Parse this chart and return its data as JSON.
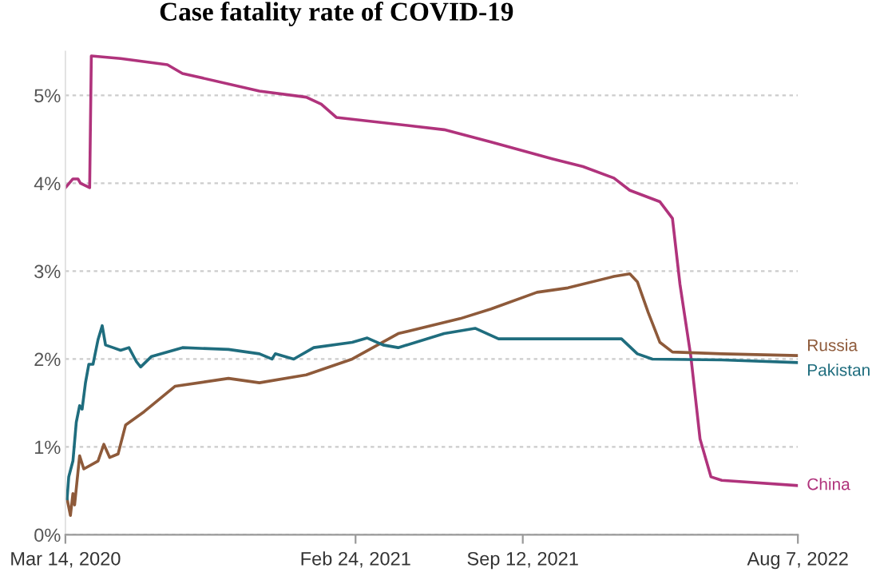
{
  "chart_data": {
    "type": "line",
    "title": "Case fatality rate of COVID-19",
    "xlim": [
      "2020-03-14",
      "2022-08-07"
    ],
    "xticks": [
      {
        "value": "2020-03-14",
        "label": "Mar 14, 2020"
      },
      {
        "value": "2021-02-24",
        "label": "Feb 24, 2021"
      },
      {
        "value": "2021-09-12",
        "label": "Sep 12, 2021"
      },
      {
        "value": "2022-08-07",
        "label": "Aug 7, 2022"
      }
    ],
    "ylim": [
      0,
      5.5
    ],
    "yticks": [
      {
        "value": 0,
        "label": "0%"
      },
      {
        "value": 1,
        "label": "1%"
      },
      {
        "value": 2,
        "label": "2%"
      },
      {
        "value": 3,
        "label": "3%"
      },
      {
        "value": 4,
        "label": "4%"
      },
      {
        "value": 5,
        "label": "5%"
      }
    ],
    "grid": "y",
    "legend": false,
    "line_style": "solid",
    "marker": "none",
    "series": [
      {
        "name": "China",
        "color": "#b0337c",
        "x": [
          "2020-03-14",
          "2020-03-23",
          "2020-03-29",
          "2020-04-01",
          "2020-04-12",
          "2020-04-14",
          "2020-05-19",
          "2020-07-14",
          "2020-08-01",
          "2020-11-01",
          "2020-12-27",
          "2021-01-14",
          "2021-02-01",
          "2021-05-05",
          "2021-06-10",
          "2021-08-05",
          "2021-10-17",
          "2021-11-23",
          "2021-12-30",
          "2022-01-18",
          "2022-02-23",
          "2022-03-10",
          "2022-03-19",
          "2022-04-01",
          "2022-04-12",
          "2022-04-25",
          "2022-05-08",
          "2022-08-07"
        ],
        "values": [
          3.95,
          4.05,
          4.05,
          4.0,
          3.95,
          5.45,
          5.42,
          5.35,
          5.25,
          5.05,
          4.98,
          4.9,
          4.75,
          4.65,
          4.61,
          4.47,
          4.28,
          4.19,
          4.06,
          3.92,
          3.79,
          3.6,
          2.85,
          2.03,
          1.09,
          0.66,
          0.62,
          0.56
        ]
      },
      {
        "name": "Russia",
        "color": "#8e5a3a",
        "x": [
          "2020-03-16",
          "2020-03-20",
          "2020-03-23",
          "2020-03-25",
          "2020-03-31",
          "2020-04-05",
          "2020-04-22",
          "2020-04-29",
          "2020-05-06",
          "2020-05-16",
          "2020-05-25",
          "2020-06-16",
          "2020-07-23",
          "2020-09-25",
          "2020-11-01",
          "2020-12-27",
          "2021-02-20",
          "2021-04-16",
          "2021-06-29",
          "2021-08-05",
          "2021-09-29",
          "2021-11-05",
          "2021-12-30",
          "2022-01-18",
          "2022-01-27",
          "2022-02-09",
          "2022-02-23",
          "2022-03-10",
          "2022-05-08",
          "2022-08-07"
        ],
        "values": [
          0.41,
          0.22,
          0.47,
          0.34,
          0.9,
          0.75,
          0.84,
          1.03,
          0.88,
          0.92,
          1.25,
          1.4,
          1.69,
          1.78,
          1.73,
          1.82,
          2.0,
          2.29,
          2.46,
          2.57,
          2.76,
          2.81,
          2.94,
          2.97,
          2.88,
          2.53,
          2.19,
          2.08,
          2.06,
          2.04
        ]
      },
      {
        "name": "Pakistan",
        "color": "#1f6d7e",
        "x": [
          "2020-03-16",
          "2020-03-18",
          "2020-03-23",
          "2020-03-27",
          "2020-03-31",
          "2020-04-03",
          "2020-04-07",
          "2020-04-11",
          "2020-04-16",
          "2020-04-22",
          "2020-04-27",
          "2020-05-01",
          "2020-05-10",
          "2020-05-19",
          "2020-05-29",
          "2020-06-07",
          "2020-06-12",
          "2020-06-25",
          "2020-08-01",
          "2020-09-25",
          "2020-11-01",
          "2020-11-16",
          "2020-11-20",
          "2020-12-12",
          "2021-01-05",
          "2021-02-20",
          "2021-03-10",
          "2021-03-29",
          "2021-04-16",
          "2021-06-10",
          "2021-07-17",
          "2021-08-14",
          "2021-09-29",
          "2022-01-08",
          "2022-01-27",
          "2022-02-14",
          "2022-05-08",
          "2022-08-07"
        ],
        "values": [
          0.41,
          0.66,
          0.84,
          1.28,
          1.47,
          1.43,
          1.73,
          1.94,
          1.94,
          2.22,
          2.38,
          2.16,
          2.13,
          2.1,
          2.13,
          1.97,
          1.91,
          2.03,
          2.13,
          2.11,
          2.06,
          2.0,
          2.06,
          2.0,
          2.13,
          2.19,
          2.24,
          2.16,
          2.13,
          2.29,
          2.35,
          2.23,
          2.23,
          2.23,
          2.06,
          2.0,
          1.99,
          1.96
        ]
      }
    ]
  }
}
